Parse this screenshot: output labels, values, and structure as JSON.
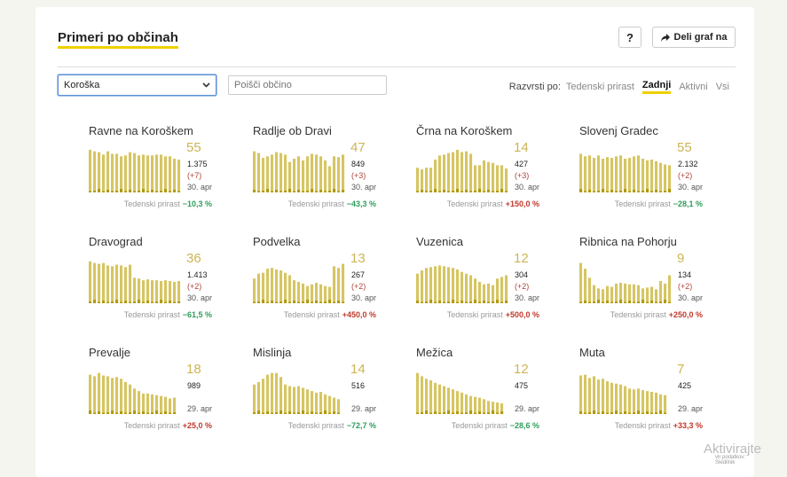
{
  "header": {
    "title": "Primeri po občinah",
    "help_label": "?",
    "share_label": "Deli graf na",
    "share_icon": "share-arrow-icon"
  },
  "filters": {
    "region_value": "Koroška",
    "search_placeholder": "Poišči občino"
  },
  "sort": {
    "label": "Razvrsti po:",
    "options": [
      "Tedenski prirast",
      "Zadnji",
      "Aktivni",
      "Vsi"
    ],
    "active": "Zadnji"
  },
  "weekly_label": "Tedenski prirast",
  "colors": {
    "bar": "#d6c562",
    "bar_new": "#b09a0a",
    "accent": "#f0d000",
    "positive": "#c0392b",
    "negative": "#2e9e5b"
  },
  "municipalities": [
    {
      "name": "Ravne na Koroškem",
      "current": "55",
      "total": "1.375",
      "delta": "(+7)",
      "date": "30. apr",
      "weekly": "−10,3 %",
      "trend": "neg",
      "bars": [
        52,
        50,
        49,
        46,
        50,
        47,
        47,
        44,
        45,
        49,
        48,
        45,
        46,
        45,
        45,
        46,
        46,
        44,
        44,
        41,
        40
      ]
    },
    {
      "name": "Radlje ob Dravi",
      "current": "47",
      "total": "849",
      "delta": "(+3)",
      "date": "30. apr",
      "weekly": "−43,3 %",
      "trend": "neg",
      "bars": [
        50,
        48,
        42,
        44,
        46,
        49,
        48,
        46,
        37,
        41,
        44,
        39,
        44,
        47,
        46,
        44,
        39,
        32,
        44,
        43,
        46
      ]
    },
    {
      "name": "Črna na Koroškem",
      "current": "14",
      "total": "427",
      "delta": "(+3)",
      "date": "30. apr",
      "weekly": "+150,0 %",
      "trend": "pos",
      "bars": [
        30,
        28,
        30,
        30,
        40,
        45,
        46,
        48,
        49,
        52,
        49,
        50,
        47,
        33,
        33,
        39,
        37,
        36,
        33,
        33,
        29
      ]
    },
    {
      "name": "Slovenj Gradec",
      "current": "55",
      "total": "2.132",
      "delta": "(+2)",
      "date": "30. apr",
      "weekly": "−28,1 %",
      "trend": "neg",
      "bars": [
        47,
        44,
        45,
        42,
        45,
        41,
        43,
        42,
        44,
        45,
        41,
        42,
        44,
        45,
        41,
        39,
        40,
        38,
        36,
        34,
        33
      ]
    },
    {
      "name": "Dravograd",
      "current": "36",
      "total": "1.413",
      "delta": "(+2)",
      "date": "30. apr",
      "weekly": "−61,5 %",
      "trend": "neg",
      "bars": [
        51,
        49,
        48,
        49,
        46,
        45,
        47,
        46,
        44,
        47,
        31,
        30,
        28,
        29,
        28,
        28,
        27,
        28,
        27,
        26,
        27
      ]
    },
    {
      "name": "Podvelka",
      "current": "13",
      "total": "267",
      "delta": "(+2)",
      "date": "30. apr",
      "weekly": "+450,0 %",
      "trend": "pos",
      "bars": [
        30,
        36,
        37,
        42,
        43,
        41,
        40,
        37,
        34,
        28,
        26,
        24,
        21,
        23,
        25,
        23,
        21,
        20,
        45,
        43,
        48
      ]
    },
    {
      "name": "Vuzenica",
      "current": "12",
      "total": "304",
      "delta": "(+2)",
      "date": "30. apr",
      "weekly": "+500,0 %",
      "trend": "pos",
      "bars": [
        36,
        40,
        43,
        44,
        45,
        46,
        45,
        44,
        43,
        41,
        38,
        36,
        34,
        30,
        26,
        23,
        24,
        22,
        30,
        32,
        34
      ]
    },
    {
      "name": "Ribnica na Pohorju",
      "current": "9",
      "total": "134",
      "delta": "(+2)",
      "date": "30. apr",
      "weekly": "+250,0 %",
      "trend": "pos",
      "bars": [
        49,
        42,
        31,
        22,
        18,
        17,
        21,
        20,
        24,
        25,
        24,
        23,
        23,
        22,
        18,
        19,
        20,
        17,
        27,
        24,
        34
      ]
    },
    {
      "name": "Prevalje",
      "current": "18",
      "total": "989",
      "delta": "",
      "date": "29. apr",
      "weekly": "+25,0 %",
      "trend": "pos",
      "bars": [
        48,
        46,
        50,
        47,
        46,
        44,
        45,
        43,
        39,
        36,
        31,
        28,
        25,
        25,
        24,
        23,
        22,
        21,
        19,
        20
      ]
    },
    {
      "name": "Mislinja",
      "current": "14",
      "total": "516",
      "delta": "",
      "date": "29. apr",
      "weekly": "−72,7 %",
      "trend": "neg",
      "bars": [
        36,
        39,
        43,
        48,
        50,
        50,
        45,
        36,
        34,
        33,
        34,
        32,
        30,
        28,
        26,
        27,
        24,
        22,
        20,
        18
      ]
    },
    {
      "name": "Mežica",
      "current": "12",
      "total": "475",
      "delta": "",
      "date": "29. apr",
      "weekly": "−28,6 %",
      "trend": "neg",
      "bars": [
        50,
        46,
        43,
        41,
        38,
        36,
        34,
        32,
        30,
        28,
        26,
        24,
        22,
        21,
        20,
        18,
        16,
        15,
        14,
        13
      ]
    },
    {
      "name": "Muta",
      "current": "7",
      "total": "425",
      "delta": "",
      "date": "29. apr",
      "weekly": "+33,3 %",
      "trend": "pos",
      "bars": [
        47,
        48,
        44,
        46,
        42,
        43,
        40,
        38,
        37,
        36,
        34,
        31,
        30,
        31,
        29,
        28,
        27,
        26,
        24,
        23
      ]
    }
  ],
  "footnote": "vir podatkov: Sledilnik",
  "watermark": "Aktivirajte"
}
